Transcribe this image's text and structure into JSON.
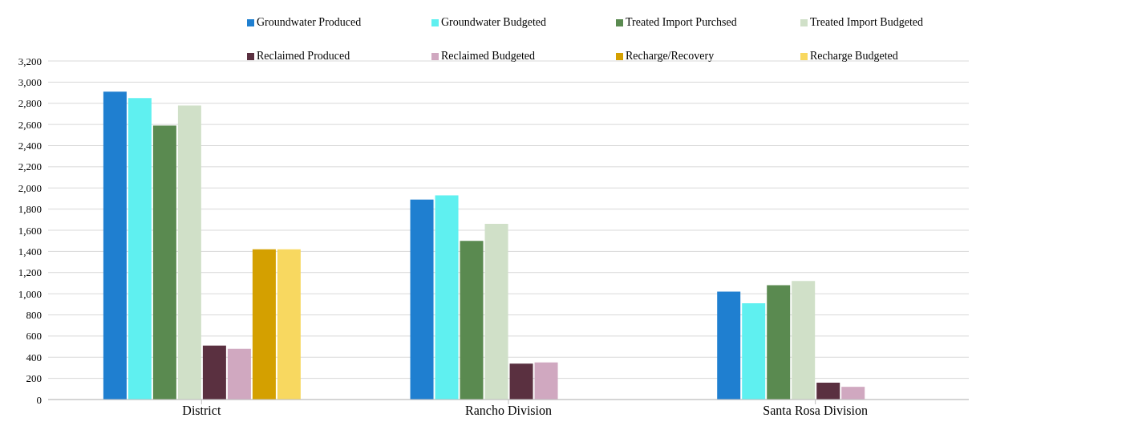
{
  "chart_data": {
    "type": "bar",
    "categories": [
      "District",
      "Rancho Division",
      "Santa Rosa Division"
    ],
    "series": [
      {
        "name": "Groundwater Produced",
        "color": "#1f7fd0",
        "values": [
          2910,
          1890,
          1020
        ]
      },
      {
        "name": "Groundwater Budgeted",
        "color": "#5ff0f0",
        "values": [
          2850,
          1930,
          910
        ]
      },
      {
        "name": "Treated Import Purchsed",
        "color": "#5a8a50",
        "values": [
          2590,
          1500,
          1080
        ]
      },
      {
        "name": "Treated Import Budgeted",
        "color": "#d0e0c8",
        "values": [
          2780,
          1660,
          1120
        ]
      },
      {
        "name": "Reclaimed Produced",
        "color": "#5a3040",
        "values": [
          510,
          340,
          160
        ]
      },
      {
        "name": "Reclaimed Budgeted",
        "color": "#d0a8c0",
        "values": [
          480,
          350,
          120
        ]
      },
      {
        "name": "Recharge/Recovery",
        "color": "#d4a000",
        "values": [
          1420,
          null,
          null
        ]
      },
      {
        "name": "Recharge Budgeted",
        "color": "#f8d860",
        "values": [
          1420,
          null,
          null
        ]
      }
    ],
    "ylim": [
      0,
      3200
    ],
    "yticks": [
      0,
      {
        "value": 200,
        "label": "200"
      },
      {
        "value": 400,
        "label": "400"
      },
      {
        "value": 600,
        "label": "600"
      },
      {
        "value": 800,
        "label": "800"
      },
      {
        "value": 1000,
        "label": "1,000"
      },
      {
        "value": 1200,
        "label": "1,200"
      },
      {
        "value": 1400,
        "label": "1,400"
      },
      {
        "value": 1600,
        "label": "1,600"
      },
      {
        "value": 1800,
        "label": "1,800"
      },
      {
        "value": 2000,
        "label": "2,000"
      },
      {
        "value": 2200,
        "label": "2,200"
      },
      {
        "value": 2400,
        "label": "2,400"
      },
      {
        "value": 2600,
        "label": "2,600"
      },
      {
        "value": 2800,
        "label": "2,800"
      },
      {
        "value": 3000,
        "label": "3,000"
      },
      {
        "value": 3200,
        "label": "3,200"
      }
    ],
    "grid": "y",
    "legend": "top right"
  }
}
